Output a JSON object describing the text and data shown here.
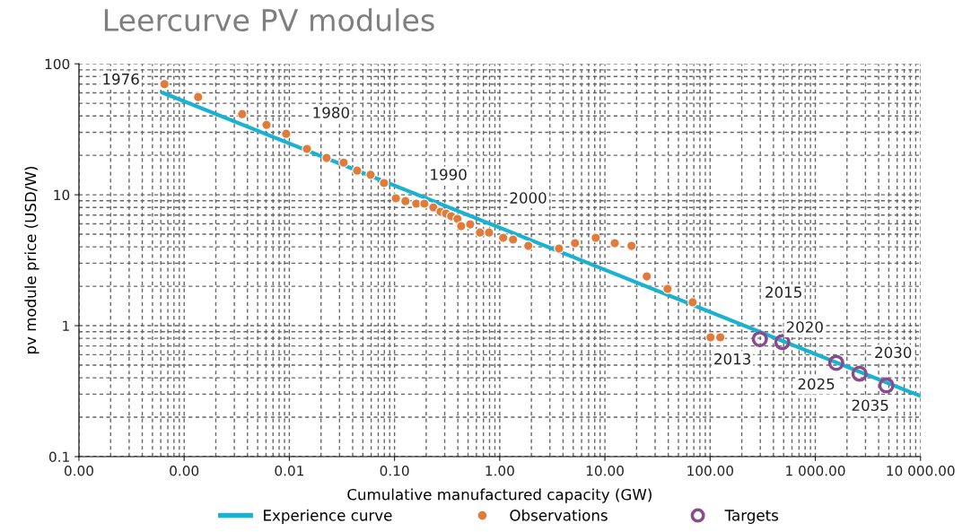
{
  "chart_data": {
    "type": "scatter",
    "title": "Leercurve PV modules",
    "xlabel": "Cumulative manufactured capacity (GW)",
    "ylabel": "pv module price (USD/W)",
    "log": "xy",
    "grid": true,
    "legend": "bottom",
    "xlim": [
      0.0001,
      10000
    ],
    "ylim": [
      0.1,
      100
    ],
    "xticks": [
      {
        "value": 0.0001,
        "label": "0.00"
      },
      {
        "value": 0.001,
        "label": "0.00"
      },
      {
        "value": 0.01,
        "label": "0.01"
      },
      {
        "value": 0.1,
        "label": "0.10"
      },
      {
        "value": 1,
        "label": "1.00"
      },
      {
        "value": 10,
        "label": "10.00"
      },
      {
        "value": 100,
        "label": "100.00"
      },
      {
        "value": 1000,
        "label": "1 000.00"
      },
      {
        "value": 10000,
        "label": "10 000.00"
      }
    ],
    "yticks": [
      0.1,
      1,
      10,
      100
    ],
    "series": [
      {
        "name": "Experience curve",
        "type": "line",
        "color": "#1ab2d2",
        "marker": "none",
        "line_style": "solid",
        "x": [
          0.00063,
          10000
        ],
        "values": [
          60,
          0.29
        ]
      },
      {
        "name": "Observations",
        "color": "#e07b39",
        "marker": "circle",
        "x": [
          0.00065,
          0.00136,
          0.00356,
          0.00607,
          0.00933,
          0.0147,
          0.0226,
          0.0328,
          0.0441,
          0.0592,
          0.0794,
          0.103,
          0.127,
          0.161,
          0.192,
          0.234,
          0.274,
          0.308,
          0.346,
          0.397,
          0.43,
          0.524,
          0.649,
          0.791,
          1.08,
          1.34,
          1.87,
          3.66,
          5.2,
          8.18,
          12.4,
          17.9,
          25,
          39.4,
          68.2,
          101,
          125
        ],
        "values": [
          70,
          55.8,
          41.3,
          34.2,
          29.2,
          22.4,
          19.1,
          17.6,
          15.3,
          14.2,
          12.3,
          9.4,
          8.95,
          8.55,
          8.55,
          8.0,
          7.41,
          7.18,
          6.85,
          6.53,
          5.76,
          5.94,
          5.15,
          5.15,
          4.69,
          4.55,
          4.07,
          3.88,
          4.27,
          4.69,
          4.27,
          4.07,
          2.38,
          1.91,
          1.51,
          0.815,
          0.815
        ]
      },
      {
        "name": "Targets",
        "color": "#8b4a8c",
        "marker": "circle",
        "x": [
          297,
          486,
          1580,
          2630,
          4740
        ],
        "values": [
          0.79,
          0.75,
          0.52,
          0.43,
          0.35
        ]
      }
    ],
    "annotations": [
      {
        "text": "1976",
        "x": 0.00065,
        "y": 70
      },
      {
        "text": "1980",
        "x": 0.00933,
        "y": 29.2
      },
      "1990",
      {
        "text": "2000",
        "x": 1.08,
        "y": 4.69
      },
      {
        "text": "2015",
        "x": 486,
        "y": 0.75
      },
      {
        "text": "2020",
        "x": 486,
        "y": 0.75
      },
      {
        "text": "2013",
        "x": 297,
        "y": 0.79
      },
      {
        "text": "2025",
        "x": 1580,
        "y": 0.52
      },
      {
        "text": "2030",
        "x": 2630,
        "y": 0.43
      },
      {
        "text": "2035",
        "x": 4740,
        "y": 0.35
      }
    ]
  }
}
